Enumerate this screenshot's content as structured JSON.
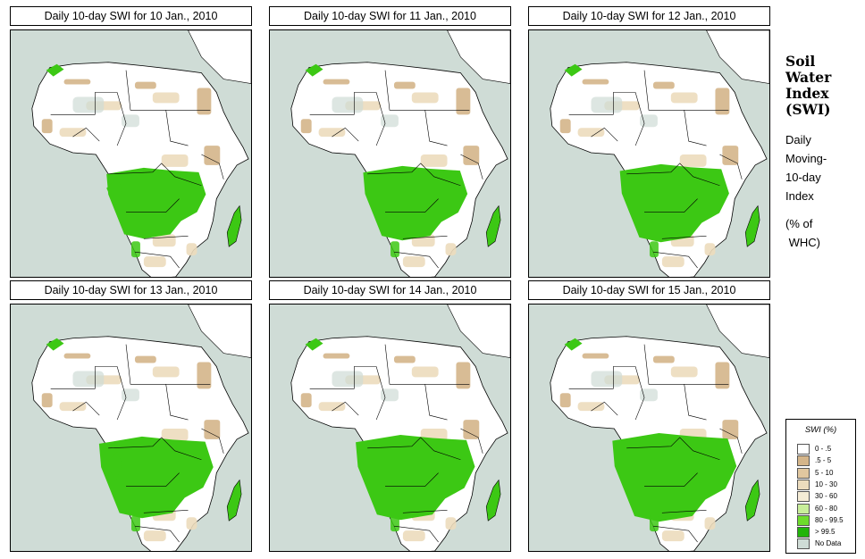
{
  "panels": [
    {
      "title": "Daily 10-day SWI for  10 Jan., 2010"
    },
    {
      "title": "Daily 10-day SWI for  11 Jan., 2010"
    },
    {
      "title": "Daily 10-day SWI for  12 Jan., 2010"
    },
    {
      "title": "Daily 10-day SWI for  13 Jan., 2010"
    },
    {
      "title": "Daily 10-day SWI for  14 Jan., 2010"
    },
    {
      "title": "Daily 10-day SWI for  15 Jan., 2010"
    }
  ],
  "side": {
    "heading_lines": [
      "Soil",
      "Water",
      "Index",
      "(SWI)"
    ],
    "subtitle_lines": [
      "Daily",
      "Moving-",
      "10-day",
      "Index"
    ],
    "unit_lines": [
      "(% of",
      " WHC)"
    ]
  },
  "legend": {
    "title": "SWI (%)",
    "items": [
      {
        "label": "0 - .5",
        "color": "#ffffff"
      },
      {
        "label": ".5 - 5",
        "color": "#d4b58a"
      },
      {
        "label": "5 - 10",
        "color": "#e1c79f"
      },
      {
        "label": "10 - 30",
        "color": "#ecdcbd"
      },
      {
        "label": "30 - 60",
        "color": "#f5ecd5"
      },
      {
        "label": "60 - 80",
        "color": "#c8ee9a"
      },
      {
        "label": "80 - 99.5",
        "color": "#6edc2c"
      },
      {
        "label": "> 99.5",
        "color": "#22b40a"
      },
      {
        "label": "No Data",
        "color": "#cfdcd6"
      }
    ]
  },
  "colors": {
    "sea": "#cfdcd6",
    "land": "#ffffff",
    "dry_dark": "#d4b58a",
    "dry_light": "#ecdcbd",
    "wet": "#3cc814",
    "no_data": "#cfdcd6"
  }
}
